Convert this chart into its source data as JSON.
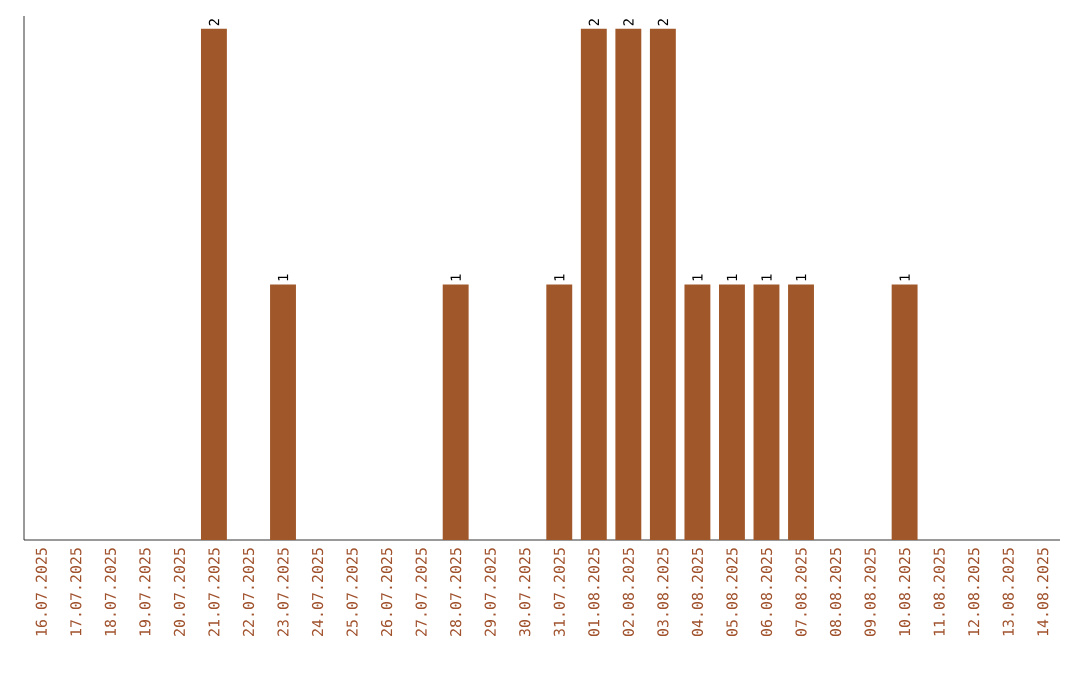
{
  "chart_data": {
    "type": "bar",
    "color": "#a0582a",
    "categories": [
      "16.07.2025",
      "17.07.2025",
      "18.07.2025",
      "19.07.2025",
      "20.07.2025",
      "21.07.2025",
      "22.07.2025",
      "23.07.2025",
      "24.07.2025",
      "25.07.2025",
      "26.07.2025",
      "27.07.2025",
      "28.07.2025",
      "29.07.2025",
      "30.07.2025",
      "31.07.2025",
      "01.08.2025",
      "02.08.2025",
      "03.08.2025",
      "04.08.2025",
      "05.08.2025",
      "06.08.2025",
      "07.08.2025",
      "08.08.2025",
      "09.08.2025",
      "10.08.2025",
      "11.08.2025",
      "12.08.2025",
      "13.08.2025",
      "14.08.2025"
    ],
    "values": [
      0,
      0,
      0,
      0,
      0,
      2,
      0,
      1,
      0,
      0,
      0,
      0,
      1,
      0,
      0,
      1,
      2,
      2,
      2,
      1,
      1,
      1,
      1,
      0,
      0,
      1,
      0,
      0,
      0,
      0
    ],
    "value_labels": [
      null,
      null,
      null,
      null,
      null,
      "2",
      null,
      "1",
      null,
      null,
      null,
      null,
      "1",
      null,
      null,
      "1",
      "2",
      "2",
      "2",
      "1",
      "1",
      "1",
      "1",
      null,
      null,
      "1",
      null,
      null,
      null,
      null
    ],
    "tick_labels": "x"
  }
}
